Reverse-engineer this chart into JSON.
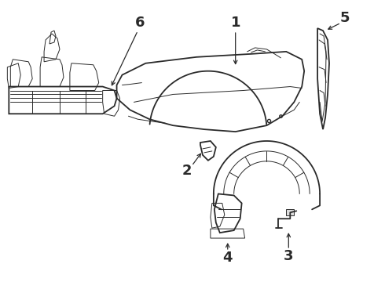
{
  "background_color": "#ffffff",
  "line_color": "#2a2a2a",
  "label_color": "#000000",
  "label_fontsize": 13,
  "figsize": [
    4.9,
    3.6
  ],
  "dpi": 100,
  "lw_main": 1.3,
  "lw_thin": 0.7,
  "lw_thick": 1.8
}
